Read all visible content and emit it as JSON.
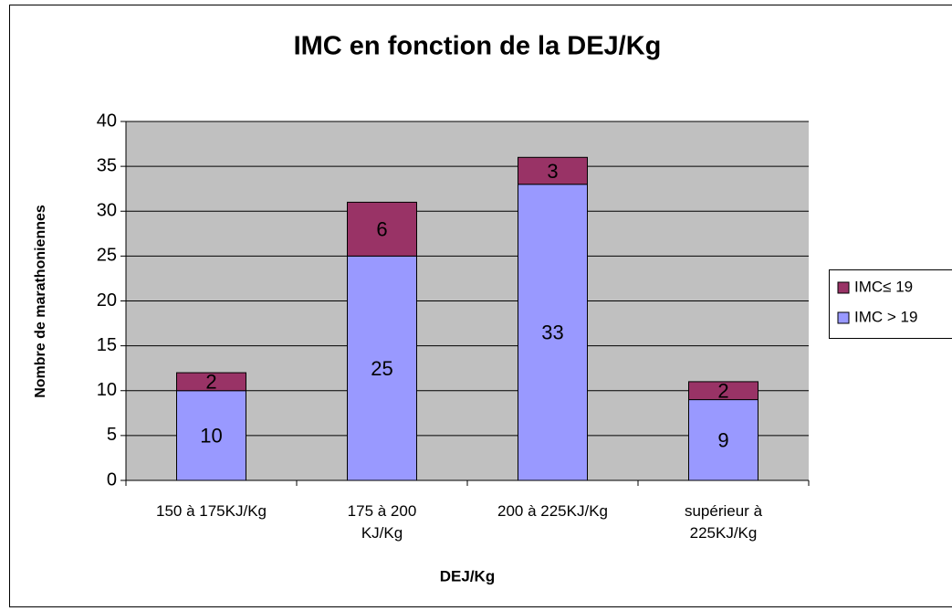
{
  "chart_data": {
    "type": "stacked_bar",
    "title": "IMC en fonction de la DEJ/Kg",
    "x_label": "DEJ/Kg",
    "y_label": "Nombre de marathoniennes",
    "categories": [
      "150 à 175KJ/Kg",
      "175 à 200\nKJ/Kg",
      "200 à 225KJ/Kg",
      "supérieur à\n225KJ/Kg"
    ],
    "series": [
      {
        "name": "IMC > 19",
        "color": "#9999ff",
        "values": [
          10,
          25,
          33,
          9
        ]
      },
      {
        "name": "IMC≤ 19",
        "color": "#993366",
        "values": [
          2,
          6,
          3,
          2
        ]
      }
    ],
    "ylim": [
      0,
      40
    ],
    "yticks": [
      0,
      5,
      10,
      15,
      20,
      25,
      30,
      35,
      40
    ],
    "grid": true,
    "legend": "right"
  }
}
